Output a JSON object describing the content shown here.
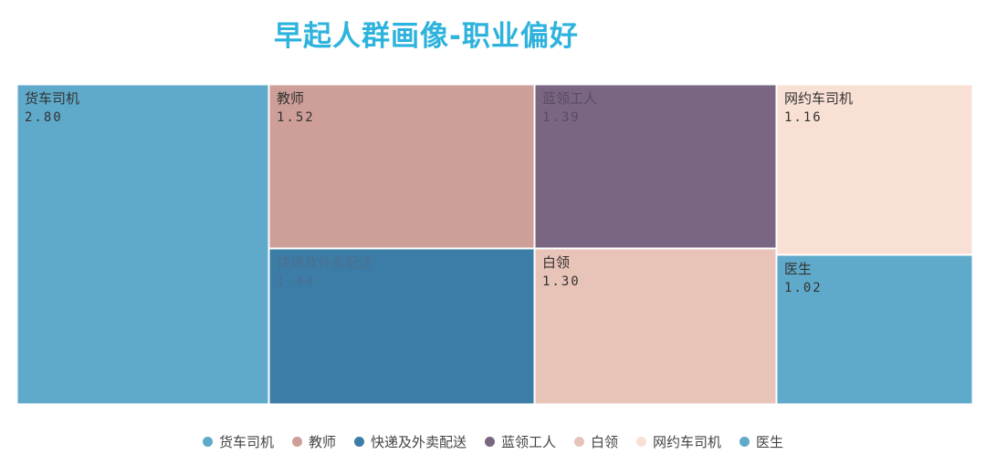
{
  "chart_data": {
    "type": "treemap",
    "title": "早起人群画像-职业偏好",
    "items": [
      {
        "name": "货车司机",
        "value": 2.8,
        "label": "2.80",
        "color": "#5faaca"
      },
      {
        "name": "教师",
        "value": 1.52,
        "label": "1.52",
        "color": "#ce9e98"
      },
      {
        "name": "快递及外卖配送",
        "value": 1.44,
        "label": "1.44",
        "color": "#3c7da8"
      },
      {
        "name": "蓝领工人",
        "value": 1.39,
        "label": "1.39",
        "color": "#7a6682"
      },
      {
        "name": "白领",
        "value": 1.3,
        "label": "1.30",
        "color": "#e8c3b7"
      },
      {
        "name": "网约车司机",
        "value": 1.16,
        "label": "1.16",
        "color": "#f9e0d4"
      },
      {
        "name": "医生",
        "value": 1.02,
        "label": "1.02",
        "color": "#5faaca"
      }
    ],
    "legend_position": "bottom"
  }
}
